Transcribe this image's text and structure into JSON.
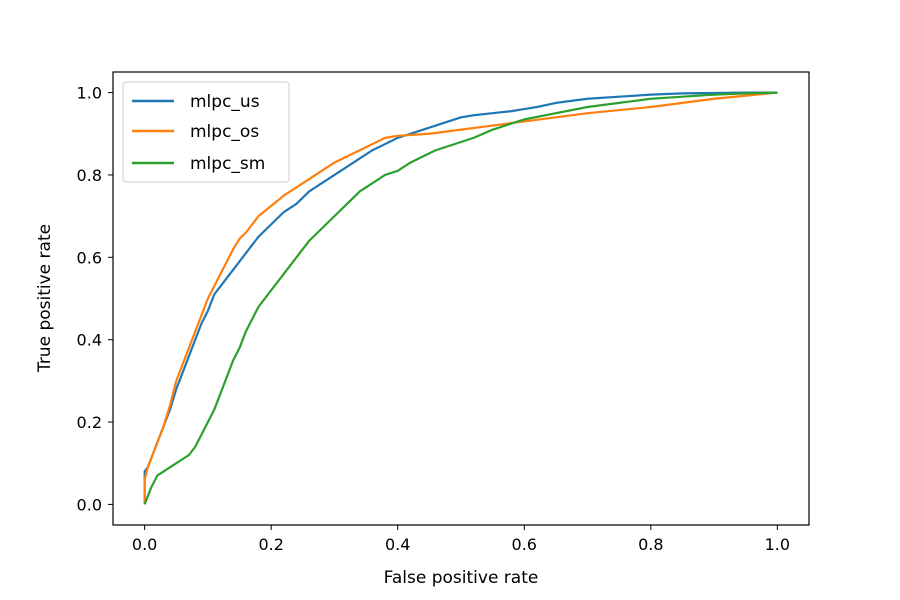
{
  "chart_data": {
    "type": "line",
    "xlabel": "False positive rate",
    "ylabel": "True positive rate",
    "xlim": [
      -0.05,
      1.05
    ],
    "ylim": [
      -0.05,
      1.05
    ],
    "xticks": [
      "0.0",
      "0.2",
      "0.4",
      "0.6",
      "0.8",
      "1.0"
    ],
    "yticks": [
      "0.0",
      "0.2",
      "0.4",
      "0.6",
      "0.8",
      "1.0"
    ],
    "grid": false,
    "legend": "top-left",
    "series": [
      {
        "name": "mlpc_us",
        "color": "#1f77b4",
        "x": [
          0.0,
          0.0,
          0.005,
          0.01,
          0.02,
          0.03,
          0.04,
          0.05,
          0.06,
          0.07,
          0.08,
          0.09,
          0.1,
          0.11,
          0.12,
          0.13,
          0.14,
          0.15,
          0.16,
          0.17,
          0.18,
          0.2,
          0.22,
          0.24,
          0.26,
          0.28,
          0.3,
          0.32,
          0.34,
          0.36,
          0.38,
          0.4,
          0.42,
          0.44,
          0.46,
          0.48,
          0.5,
          0.52,
          0.55,
          0.58,
          0.6,
          0.62,
          0.65,
          0.7,
          0.75,
          0.8,
          0.85,
          0.9,
          0.95,
          1.0
        ],
        "y": [
          0.0,
          0.08,
          0.09,
          0.11,
          0.15,
          0.19,
          0.23,
          0.28,
          0.32,
          0.36,
          0.4,
          0.44,
          0.47,
          0.51,
          0.53,
          0.55,
          0.57,
          0.59,
          0.61,
          0.63,
          0.65,
          0.68,
          0.71,
          0.73,
          0.76,
          0.78,
          0.8,
          0.82,
          0.84,
          0.86,
          0.875,
          0.89,
          0.9,
          0.91,
          0.92,
          0.93,
          0.94,
          0.945,
          0.95,
          0.955,
          0.96,
          0.965,
          0.975,
          0.985,
          0.99,
          0.995,
          0.998,
          0.999,
          1.0,
          1.0
        ]
      },
      {
        "name": "mlpc_os",
        "color": "#ff7f0e",
        "x": [
          0.0,
          0.0,
          0.005,
          0.01,
          0.02,
          0.03,
          0.04,
          0.05,
          0.06,
          0.07,
          0.08,
          0.09,
          0.1,
          0.11,
          0.12,
          0.13,
          0.14,
          0.15,
          0.16,
          0.17,
          0.18,
          0.2,
          0.22,
          0.24,
          0.26,
          0.28,
          0.3,
          0.32,
          0.34,
          0.36,
          0.38,
          0.4,
          0.45,
          0.5,
          0.55,
          0.6,
          0.7,
          0.8,
          0.9,
          1.0
        ],
        "y": [
          0.0,
          0.06,
          0.09,
          0.11,
          0.15,
          0.19,
          0.24,
          0.3,
          0.34,
          0.38,
          0.42,
          0.46,
          0.5,
          0.53,
          0.56,
          0.59,
          0.62,
          0.645,
          0.66,
          0.68,
          0.7,
          0.725,
          0.75,
          0.77,
          0.79,
          0.81,
          0.83,
          0.845,
          0.86,
          0.875,
          0.89,
          0.895,
          0.9,
          0.91,
          0.92,
          0.93,
          0.95,
          0.965,
          0.985,
          1.0
        ]
      },
      {
        "name": "mlpc_sm",
        "color": "#2ca02c",
        "x": [
          0.0,
          0.005,
          0.01,
          0.02,
          0.03,
          0.04,
          0.05,
          0.06,
          0.07,
          0.08,
          0.09,
          0.1,
          0.11,
          0.12,
          0.13,
          0.14,
          0.15,
          0.16,
          0.17,
          0.18,
          0.19,
          0.2,
          0.22,
          0.24,
          0.26,
          0.28,
          0.3,
          0.32,
          0.34,
          0.36,
          0.38,
          0.4,
          0.42,
          0.44,
          0.46,
          0.48,
          0.5,
          0.52,
          0.55,
          0.58,
          0.6,
          0.65,
          0.7,
          0.75,
          0.8,
          0.85,
          0.9,
          0.95,
          1.0
        ],
        "y": [
          0.0,
          0.02,
          0.04,
          0.07,
          0.08,
          0.09,
          0.1,
          0.11,
          0.12,
          0.14,
          0.17,
          0.2,
          0.23,
          0.27,
          0.31,
          0.35,
          0.38,
          0.42,
          0.45,
          0.48,
          0.5,
          0.52,
          0.56,
          0.6,
          0.64,
          0.67,
          0.7,
          0.73,
          0.76,
          0.78,
          0.8,
          0.81,
          0.83,
          0.845,
          0.86,
          0.87,
          0.88,
          0.89,
          0.91,
          0.925,
          0.935,
          0.95,
          0.965,
          0.975,
          0.985,
          0.99,
          0.995,
          0.998,
          1.0
        ]
      }
    ]
  }
}
